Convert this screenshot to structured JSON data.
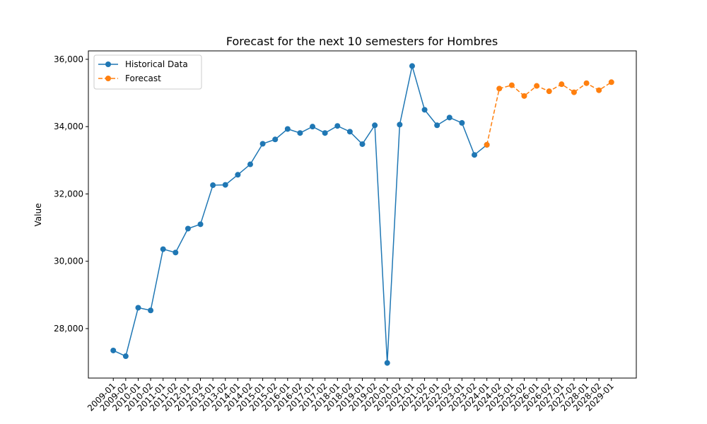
{
  "chart_data": {
    "type": "line",
    "title": "Forecast for the next 10 semesters for Hombres",
    "y_label": "Value",
    "categories": [
      "2009-01",
      "2009-02",
      "2010-01",
      "2010-02",
      "2011-01",
      "2011-02",
      "2012-01",
      "2012-02",
      "2013-01",
      "2013-02",
      "2014-01",
      "2014-02",
      "2015-01",
      "2015-02",
      "2016-01",
      "2016-02",
      "2017-01",
      "2017-02",
      "2018-01",
      "2018-02",
      "2019-01",
      "2019-02",
      "2020-01",
      "2020-02",
      "2021-01",
      "2021-02",
      "2022-01",
      "2022-02",
      "2023-01",
      "2023-02",
      "2024-01",
      "2024-02",
      "2025-01",
      "2025-02",
      "2026-01",
      "2026-02",
      "2027-01",
      "2027-02",
      "2028-01",
      "2028-02",
      "2029-01"
    ],
    "series": [
      {
        "name": "Historical Data",
        "color": "#1f77b4",
        "dashed": false,
        "values": [
          27350,
          27180,
          28620,
          28540,
          30360,
          30260,
          30970,
          31100,
          32260,
          32270,
          32570,
          32880,
          33490,
          33620,
          33930,
          33810,
          34000,
          33810,
          34020,
          33850,
          33480,
          34040,
          26980,
          34060,
          35800,
          34500,
          34040,
          34270,
          34110,
          33160,
          33460,
          null,
          null,
          null,
          null,
          null,
          null,
          null,
          null,
          null,
          null
        ]
      },
      {
        "name": "Forecast",
        "color": "#ff7f0e",
        "dashed": true,
        "values": [
          null,
          null,
          null,
          null,
          null,
          null,
          null,
          null,
          null,
          null,
          null,
          null,
          null,
          null,
          null,
          null,
          null,
          null,
          null,
          null,
          null,
          null,
          null,
          null,
          null,
          null,
          null,
          null,
          null,
          null,
          33460,
          35130,
          35230,
          34910,
          35210,
          35050,
          35260,
          35020,
          35290,
          35080,
          35320
        ]
      }
    ],
    "ylim": [
      26530,
      36250
    ],
    "yticks": [
      {
        "value": 28000,
        "label": "28,000"
      },
      {
        "value": 30000,
        "label": "30,000"
      },
      {
        "value": 32000,
        "label": "32,000"
      },
      {
        "value": 34000,
        "label": "34,000"
      },
      {
        "value": 36000,
        "label": "36,000"
      }
    ],
    "legend": "upper left",
    "grid": false
  }
}
